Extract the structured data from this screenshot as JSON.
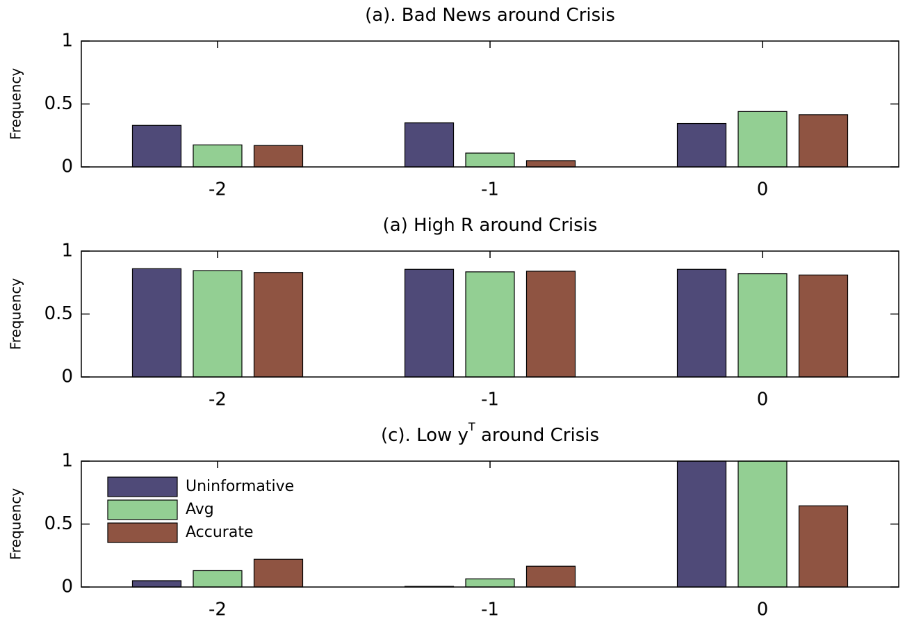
{
  "chart_data": [
    {
      "type": "bar",
      "title": "(a). Bad News around Crisis",
      "ylabel": "Frequency",
      "categories": [
        "-2",
        "-1",
        "0"
      ],
      "series": [
        {
          "name": "Uninformative",
          "color": "#4f4a78",
          "values": [
            0.33,
            0.35,
            0.345
          ]
        },
        {
          "name": "Avg",
          "color": "#93cf93",
          "values": [
            0.175,
            0.11,
            0.44
          ]
        },
        {
          "name": "Accurate",
          "color": "#8f5442",
          "values": [
            0.17,
            0.05,
            0.415
          ]
        }
      ],
      "ylim": [
        0,
        1
      ],
      "yticks": [
        0,
        0.5,
        1
      ],
      "grid": false,
      "legend": false
    },
    {
      "type": "bar",
      "title": "(a) High R around Crisis",
      "ylabel": "Frequency",
      "categories": [
        "-2",
        "-1",
        "0"
      ],
      "series": [
        {
          "name": "Uninformative",
          "color": "#4f4a78",
          "values": [
            0.86,
            0.855,
            0.855
          ]
        },
        {
          "name": "Avg",
          "color": "#93cf93",
          "values": [
            0.845,
            0.835,
            0.82
          ]
        },
        {
          "name": "Accurate",
          "color": "#8f5442",
          "values": [
            0.83,
            0.84,
            0.81
          ]
        }
      ],
      "ylim": [
        0,
        1
      ],
      "yticks": [
        0,
        0.5,
        1
      ],
      "grid": false,
      "legend": false
    },
    {
      "type": "bar",
      "title": "(c). Low y",
      "title_superscript": "T",
      "title_rest": " around Crisis",
      "ylabel": "Frequency",
      "categories": [
        "-2",
        "-1",
        "0"
      ],
      "series": [
        {
          "name": "Uninformative",
          "color": "#4f4a78",
          "values": [
            0.05,
            0.005,
            1
          ]
        },
        {
          "name": "Avg",
          "color": "#93cf93",
          "values": [
            0.13,
            0.065,
            1
          ]
        },
        {
          "name": "Accurate",
          "color": "#8f5442",
          "values": [
            0.22,
            0.165,
            0.645
          ]
        }
      ],
      "ylim": [
        0,
        1
      ],
      "yticks": [
        0,
        0.5,
        1
      ],
      "grid": false,
      "legend": "upper left"
    }
  ]
}
